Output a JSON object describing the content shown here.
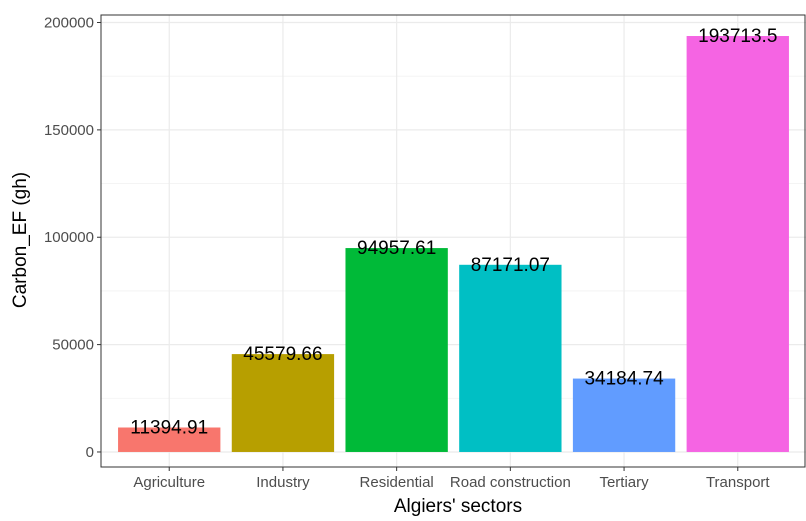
{
  "chart_data": {
    "type": "bar",
    "title": "",
    "xlabel": "Algiers' sectors",
    "ylabel": "Carbon_EF (gh)",
    "categories": [
      "Agriculture",
      "Industry",
      "Residential",
      "Road construction",
      "Tertiary",
      "Transport"
    ],
    "values": [
      11394.91,
      45579.66,
      94957.61,
      87171.07,
      34184.74,
      193713.5
    ],
    "value_labels": [
      "11394.91",
      "45579.66",
      "94957.61",
      "87171.07",
      "34184.74",
      "193713.5"
    ],
    "colors": [
      "#F8766D",
      "#B79F00",
      "#00BA38",
      "#00BFC4",
      "#619CFF",
      "#F564E3"
    ],
    "ylim": [
      -7000,
      203500
    ],
    "yticks": [
      0,
      50000,
      100000,
      150000,
      200000
    ],
    "ytick_labels": [
      "0",
      "50000",
      "100000",
      "150000",
      "200000"
    ],
    "grid": true,
    "legend": "none",
    "panel_border": true
  }
}
